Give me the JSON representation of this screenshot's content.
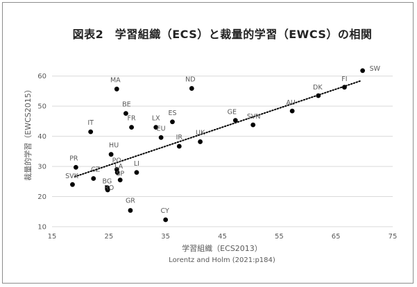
{
  "chart_data": {
    "type": "scatter",
    "title": "図表2　学習組織（ECS）と裁量的学習（EWCS）の相関",
    "xlabel": "学習組織（ECS2013）",
    "ylabel": "裁量的学習（EWCS2015）",
    "caption": "Lorentz and Holm (2021:p184)",
    "xlim": [
      15,
      75
    ],
    "ylim": [
      10,
      65
    ],
    "xticks": [
      "15",
      "25",
      "35",
      "45",
      "55",
      "65",
      "75"
    ],
    "yticks": [
      "10",
      "20",
      "30",
      "40",
      "50",
      "60"
    ],
    "grid": "horizontal",
    "trendline": "linear dotted",
    "points": [
      {
        "label": "SW",
        "x": 69.7,
        "y": 61.8
      },
      {
        "label": "FI",
        "x": 66.5,
        "y": 56.3
      },
      {
        "label": "DK",
        "x": 61.9,
        "y": 53.5
      },
      {
        "label": "AU",
        "x": 57.3,
        "y": 48.4
      },
      {
        "label": "GE",
        "x": 47.3,
        "y": 45.3
      },
      {
        "label": "SVN",
        "x": 50.4,
        "y": 43.8
      },
      {
        "label": "ND",
        "x": 39.6,
        "y": 55.9
      },
      {
        "label": "MA",
        "x": 26.4,
        "y": 55.7
      },
      {
        "label": "BE",
        "x": 28.0,
        "y": 47.6
      },
      {
        "label": "FR",
        "x": 29.0,
        "y": 43.0
      },
      {
        "label": "LX",
        "x": 33.3,
        "y": 43.0
      },
      {
        "label": "ES",
        "x": 36.2,
        "y": 44.8
      },
      {
        "label": "EU",
        "x": 34.2,
        "y": 39.6
      },
      {
        "label": "UK",
        "x": 41.1,
        "y": 38.2
      },
      {
        "label": "IR",
        "x": 37.4,
        "y": 36.7
      },
      {
        "label": "IT",
        "x": 21.8,
        "y": 41.5
      },
      {
        "label": "HU",
        "x": 25.4,
        "y": 34.0
      },
      {
        "label": "PO",
        "x": 26.4,
        "y": 29.0
      },
      {
        "label": "LA",
        "x": 26.5,
        "y": 28.0
      },
      {
        "label": "LI",
        "x": 29.9,
        "y": 28.0
      },
      {
        "label": "SP",
        "x": 27.0,
        "y": 25.5
      },
      {
        "label": "PR",
        "x": 19.2,
        "y": 29.7
      },
      {
        "label": "CZ",
        "x": 22.3,
        "y": 26.0
      },
      {
        "label": "SVK",
        "x": 18.6,
        "y": 24.0
      },
      {
        "label": "BG",
        "x": 24.7,
        "y": 23.0
      },
      {
        "label": "RO",
        "x": 24.8,
        "y": 22.2
      },
      {
        "label": "GR",
        "x": 28.8,
        "y": 15.4
      },
      {
        "label": "CY",
        "x": 35.0,
        "y": 12.3
      }
    ],
    "trend": {
      "x": [
        19.0,
        69.5
      ],
      "y": [
        26.6,
        58.5
      ]
    }
  },
  "colors": {
    "point": "#000000",
    "grid": "#d9d9d9",
    "text": "#595959"
  }
}
